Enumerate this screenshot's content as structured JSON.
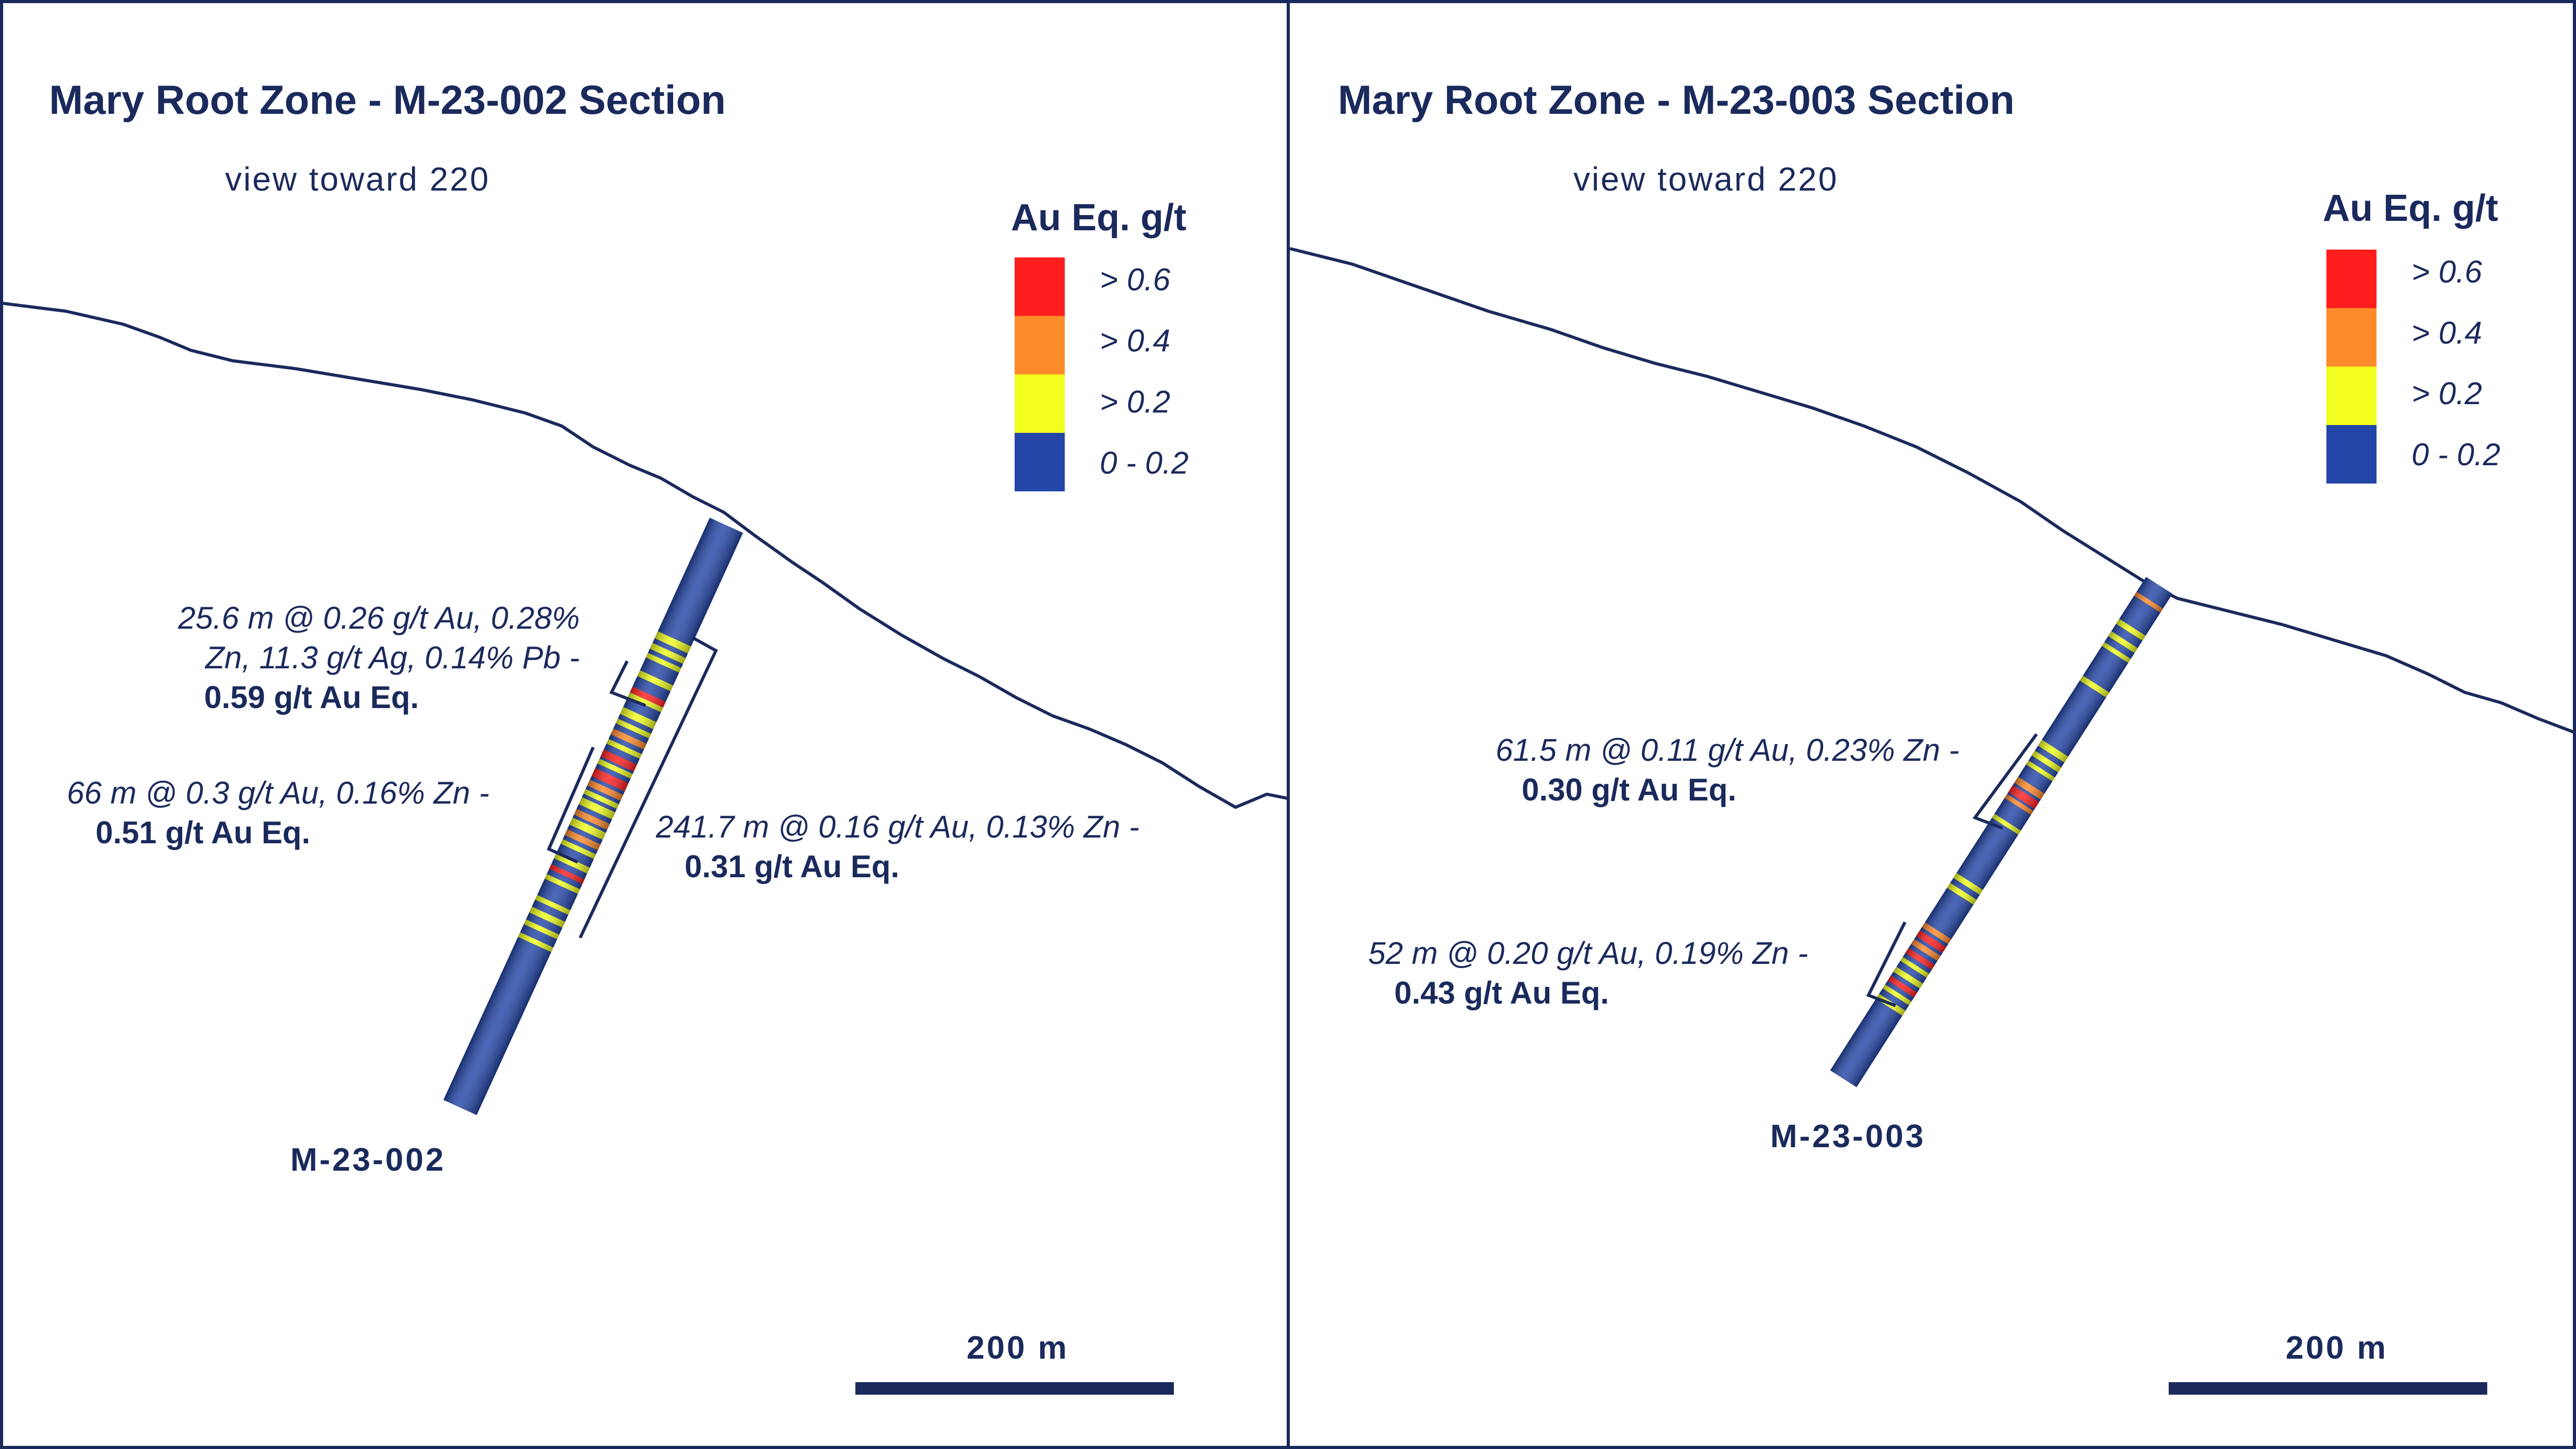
{
  "colors": {
    "frame": "#1b2a5c",
    "grade_red": "#ff1e1e",
    "grade_orange": "#ff8a2a",
    "grade_yellow": "#f2ff1e",
    "grade_blue": "#2446a8"
  },
  "panels": [
    {
      "title": "Mary Root Zone - M-23-002 Section",
      "subtitle": "view toward 220",
      "legend": {
        "title": "Au Eq. g/t",
        "items": [
          {
            "label": ">  0.6",
            "color": "#ff1e1e"
          },
          {
            "label": ">  0.4",
            "color": "#ff8a2a"
          },
          {
            "label": ">  0.2",
            "color": "#f2ff1e"
          },
          {
            "label": "0 - 0.2",
            "color": "#2446a8"
          }
        ]
      },
      "intervals": [
        {
          "line1": "25.6 m @ 0.26 g/t Au, 0.28%",
          "line2": "Zn, 11.3 g/t Ag, 0.14% Pb -",
          "bold": "0.59 g/t Au Eq."
        },
        {
          "line1": "66 m @ 0.3 g/t Au, 0.16% Zn -",
          "bold": "0.51 g/t Au Eq."
        },
        {
          "line1": "241.7 m @ 0.16 g/t Au, 0.13% Zn -",
          "bold": "0.31 g/t Au Eq."
        }
      ],
      "drillhole": "M-23-002",
      "scale": "200 m"
    },
    {
      "title": "Mary Root Zone - M-23-003 Section",
      "subtitle": "view toward 220",
      "legend": {
        "title": "Au Eq. g/t",
        "items": [
          {
            "label": ">  0.6",
            "color": "#ff1e1e"
          },
          {
            "label": ">  0.4",
            "color": "#ff8a2a"
          },
          {
            "label": ">  0.2",
            "color": "#f2ff1e"
          },
          {
            "label": "0 - 0.2",
            "color": "#2446a8"
          }
        ]
      },
      "intervals": [
        {
          "line1": "61.5 m @ 0.11 g/t Au, 0.23% Zn -",
          "bold": "0.30 g/t Au Eq."
        },
        {
          "line1": "52 m @ 0.20 g/t Au, 0.19% Zn -",
          "bold": "0.43 g/t Au Eq."
        }
      ],
      "drillhole": "M-23-003",
      "scale": "200 m"
    }
  ]
}
